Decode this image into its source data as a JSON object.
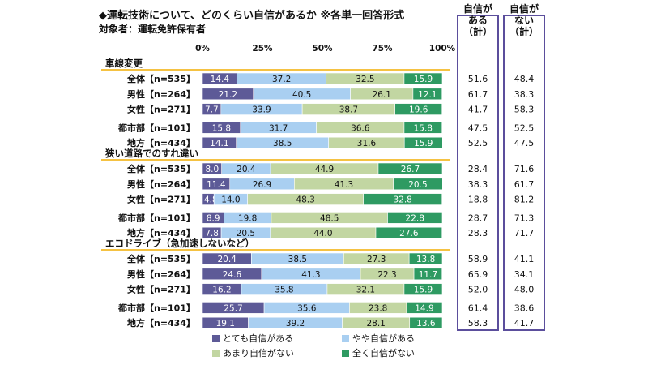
{
  "title": "◆運転技術について、どのくらい自信があるか ※各単一回答形式",
  "subtitle": "対象者：運転免許保有者",
  "summary_headers": [
    "自信が\nある\n（計）",
    "自信が\nない\n（計）"
  ],
  "colors": {
    "series": [
      "#5d5a97",
      "#a9cff1",
      "#c2d6a2",
      "#2e9a62"
    ],
    "section_line": "#f5c242",
    "box": "#5b4e9c"
  },
  "chart_data": {
    "type": "bar",
    "orientation": "horizontal",
    "stacked": true,
    "xlim": [
      0,
      100
    ],
    "x_ticks": [
      "0%",
      "25%",
      "50%",
      "75%",
      "100%"
    ],
    "legend": [
      "とても自信がある",
      "やや自信がある",
      "あまり自信がない",
      "全く自信がない"
    ],
    "legend_position": "bottom",
    "groups": [
      {
        "name": "車線変更",
        "rows": [
          {
            "label": "全体【n=535】",
            "values": [
              14.4,
              37.2,
              32.5,
              15.9
            ],
            "confident_total": 51.6,
            "not_confident_total": 48.4
          },
          {
            "label": "男性【n=264】",
            "values": [
              21.2,
              40.5,
              26.1,
              12.1
            ],
            "confident_total": 61.7,
            "not_confident_total": 38.3
          },
          {
            "label": "女性【n=271】",
            "values": [
              7.7,
              33.9,
              38.7,
              19.6
            ],
            "confident_total": 41.7,
            "not_confident_total": 58.3
          },
          {
            "label": "都市部【n=101】",
            "values": [
              15.8,
              31.7,
              36.6,
              15.8
            ],
            "confident_total": 47.5,
            "not_confident_total": 52.5
          },
          {
            "label": "地方【n=434】",
            "values": [
              14.1,
              38.5,
              31.6,
              15.9
            ],
            "confident_total": 52.5,
            "not_confident_total": 47.5
          }
        ]
      },
      {
        "name": "狭い道路でのすれ違い",
        "rows": [
          {
            "label": "全体【n=535】",
            "values": [
              8.0,
              20.4,
              44.9,
              26.7
            ],
            "confident_total": 28.4,
            "not_confident_total": 71.6
          },
          {
            "label": "男性【n=264】",
            "values": [
              11.4,
              26.9,
              41.3,
              20.5
            ],
            "confident_total": 38.3,
            "not_confident_total": 61.7
          },
          {
            "label": "女性【n=271】",
            "values": [
              4.8,
              14.0,
              48.3,
              32.8
            ],
            "confident_total": 18.8,
            "not_confident_total": 81.2
          },
          {
            "label": "都市部【n=101】",
            "values": [
              8.9,
              19.8,
              48.5,
              22.8
            ],
            "confident_total": 28.7,
            "not_confident_total": 71.3
          },
          {
            "label": "地方【n=434】",
            "values": [
              7.8,
              20.5,
              44.0,
              27.6
            ],
            "confident_total": 28.3,
            "not_confident_total": 71.7
          }
        ]
      },
      {
        "name": "エコドライブ（急加速しないなど）",
        "rows": [
          {
            "label": "全体【n=535】",
            "values": [
              20.4,
              38.5,
              27.3,
              13.8
            ],
            "confident_total": 58.9,
            "not_confident_total": 41.1
          },
          {
            "label": "男性【n=264】",
            "values": [
              24.6,
              41.3,
              22.3,
              11.7
            ],
            "confident_total": 65.9,
            "not_confident_total": 34.1
          },
          {
            "label": "女性【n=271】",
            "values": [
              16.2,
              35.8,
              32.1,
              15.9
            ],
            "confident_total": 52.0,
            "not_confident_total": 48.0
          },
          {
            "label": "都市部【n=101】",
            "values": [
              25.7,
              35.6,
              23.8,
              14.9
            ],
            "confident_total": 61.4,
            "not_confident_total": 38.6
          },
          {
            "label": "地方【n=434】",
            "values": [
              19.1,
              39.2,
              28.1,
              13.6
            ],
            "confident_total": 58.3,
            "not_confident_total": 41.7
          }
        ]
      }
    ]
  }
}
